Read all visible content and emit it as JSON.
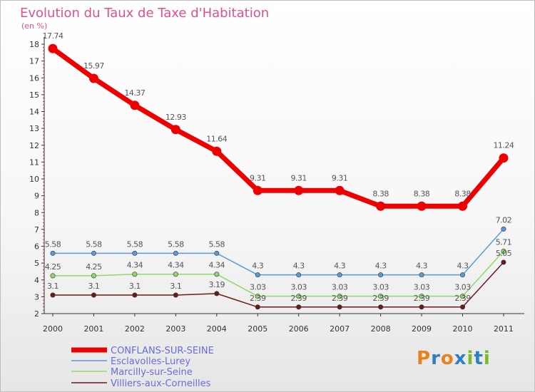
{
  "chart_data": {
    "type": "line",
    "title": "Evolution du Taux de Taxe d'Habitation",
    "subtitle": "(en %)",
    "xlabel": "",
    "ylabel": "",
    "categories": [
      "2000",
      "2001",
      "2002",
      "2003",
      "2004",
      "2005",
      "2006",
      "2007",
      "2008",
      "2009",
      "2010",
      "2011"
    ],
    "ylim": [
      2,
      18
    ],
    "yticks": [
      2,
      3,
      4,
      5,
      6,
      7,
      8,
      9,
      10,
      11,
      12,
      13,
      14,
      15,
      16,
      17,
      18
    ],
    "grid": false,
    "legend_position": "bottom-left",
    "series": [
      {
        "name": "CONFLANS-SUR-SEINE",
        "color": "#ee0000",
        "values": [
          17.74,
          15.97,
          14.37,
          12.93,
          11.64,
          9.31,
          9.31,
          9.31,
          8.38,
          8.38,
          8.38,
          11.24
        ],
        "labels": [
          "17.74",
          "15.97",
          "14.37",
          "12.93",
          "11.64",
          "9.31",
          "9.31",
          "9.31",
          "8.38",
          "8.38",
          "8.38",
          "11.24"
        ]
      },
      {
        "name": "Esclavolles-Lurey",
        "color": "#5b9bd5",
        "values": [
          5.58,
          5.58,
          5.58,
          5.58,
          5.58,
          4.3,
          4.3,
          4.3,
          4.3,
          4.3,
          4.3,
          7.02
        ],
        "labels": [
          "5.58",
          "5.58",
          "5.58",
          "5.58",
          "5.58",
          "4.3",
          "4.3",
          "4.3",
          "4.3",
          "4.3",
          "4.3",
          "7.02"
        ]
      },
      {
        "name": "Marcilly-sur-Seine",
        "color": "#8fd96a",
        "values": [
          4.25,
          4.25,
          4.34,
          4.34,
          4.34,
          3.03,
          3.03,
          3.03,
          3.03,
          3.03,
          3.03,
          5.71
        ],
        "labels": [
          "4.25",
          "4.25",
          "4.34",
          "4.34",
          "4.34",
          "3.03",
          "3.03",
          "3.03",
          "3.03",
          "3.03",
          "3.03",
          "5.71"
        ]
      },
      {
        "name": "Villiers-aux-Corneilles",
        "color": "#6b1a1a",
        "values": [
          3.1,
          3.1,
          3.1,
          3.1,
          3.19,
          2.39,
          2.39,
          2.39,
          2.39,
          2.39,
          2.39,
          5.05
        ],
        "labels": [
          "3.1",
          "3.1",
          "3.1",
          "3.1",
          "3.19",
          "2.39",
          "2.39",
          "2.39",
          "2.39",
          "2.39",
          "2.39",
          "5.05"
        ]
      }
    ]
  },
  "logo": {
    "text": "Proxiti",
    "letters": [
      "P",
      "r",
      "o",
      "x",
      "i",
      "t",
      "i"
    ],
    "colors": [
      "#e8821e",
      "#2f7fc1",
      "#e8821e",
      "#2f7fc1",
      "#7ab929",
      "#2f7fc1",
      "#7ab929"
    ]
  },
  "colors": {
    "title": "#e0508a",
    "axis": "#333333",
    "tick_minor": "#cc3333",
    "label": "#555555",
    "legend_text": "#6a6ae0"
  }
}
